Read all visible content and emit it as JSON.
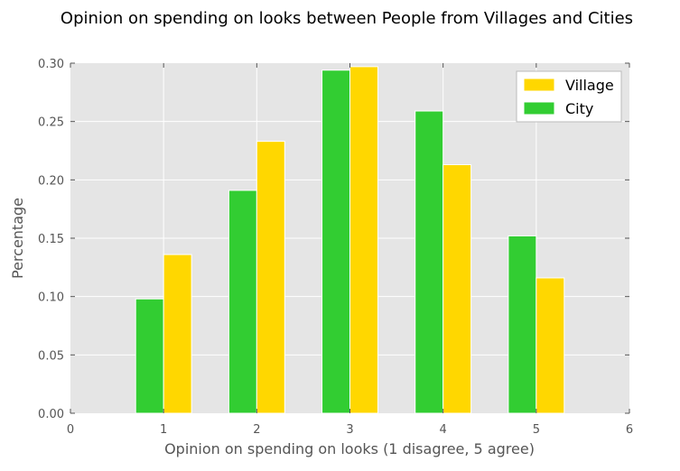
{
  "chart_data": {
    "type": "bar",
    "title": "Opinion on spending on looks between People from Villages and Cities",
    "xlabel": "Opinion on spending on looks (1 disagree, 5 agree)",
    "ylabel": "Percentage",
    "xlim": [
      0,
      6
    ],
    "ylim": [
      0,
      0.3
    ],
    "xticks": [
      "0",
      "1",
      "2",
      "3",
      "4",
      "5",
      "6"
    ],
    "yticks": [
      "0.00",
      "0.05",
      "0.10",
      "0.15",
      "0.20",
      "0.25",
      "0.30"
    ],
    "categories": [
      1,
      2,
      3,
      4,
      5
    ],
    "grid": true,
    "legend_position": "top-right",
    "series": [
      {
        "name": "Village",
        "color": "#FFD700",
        "values": [
          0.136,
          0.233,
          0.297,
          0.213,
          0.116
        ]
      },
      {
        "name": "City",
        "color": "#32CD32",
        "values": [
          0.098,
          0.191,
          0.294,
          0.259,
          0.152
        ]
      }
    ]
  }
}
